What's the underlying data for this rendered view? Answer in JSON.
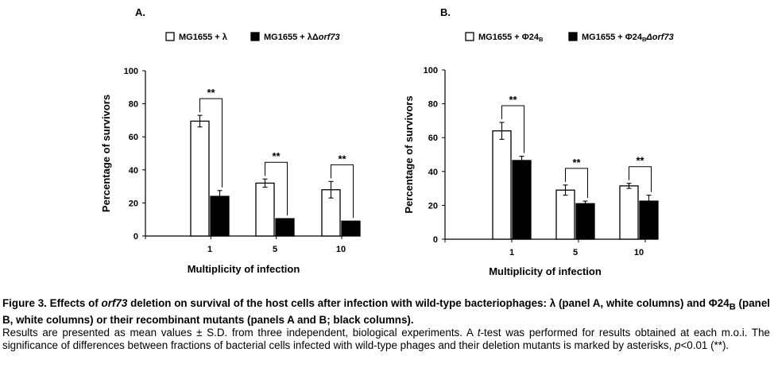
{
  "chart_data": [
    {
      "type": "bar",
      "panel_label": "A.",
      "categories": [
        "1",
        "5",
        "10"
      ],
      "series": [
        {
          "name": "MG1655 + λ",
          "legend_pre": "MG1655 + λ",
          "legend_sub": "",
          "legend_italic": "",
          "color": "#ffffff",
          "values": [
            69.5,
            32,
            28
          ],
          "errors": [
            3.5,
            2.5,
            5
          ]
        },
        {
          "name": "MG1655 + λΔorf73",
          "legend_pre": "MG1655 + λΔ",
          "legend_sub": "",
          "legend_italic": "orf73",
          "color": "#000000",
          "values": [
            24,
            10.5,
            9
          ],
          "errors": [
            3.5,
            0,
            0
          ]
        }
      ],
      "significance": [
        "**",
        "**",
        "**"
      ],
      "xlabel": "Multiplicity of infection",
      "ylabel": "Percentage of survivors",
      "ylim": [
        0,
        100
      ],
      "yticks": [
        "0",
        "20",
        "40",
        "60",
        "80",
        "100"
      ],
      "grid": false,
      "legend_position": "top"
    },
    {
      "type": "bar",
      "panel_label": "B.",
      "categories": [
        "1",
        "5",
        "10"
      ],
      "series": [
        {
          "name": "MG1655 + Φ24B",
          "legend_pre": "MG1655 + Φ24",
          "legend_sub": "B",
          "legend_italic": "",
          "color": "#ffffff",
          "values": [
            64,
            29,
            31.5
          ],
          "errors": [
            5,
            3,
            1.5
          ]
        },
        {
          "name": "MG1655 + Φ24BΔorf73",
          "legend_pre": "MG1655 + Φ24",
          "legend_sub": "B",
          "legend_italic": "Δorf73",
          "color": "#000000",
          "values": [
            46.5,
            21,
            22.5
          ],
          "errors": [
            2.5,
            1.5,
            3.5
          ]
        }
      ],
      "significance": [
        "**",
        "**",
        "**"
      ],
      "xlabel": "Multiplicity of infection",
      "ylabel": "Percentage of survivors",
      "ylim": [
        0,
        100
      ],
      "yticks": [
        "0",
        "20",
        "40",
        "60",
        "80",
        "100"
      ],
      "grid": false,
      "legend_position": "top"
    }
  ],
  "caption": {
    "title_1": "Figure 3. Effects of ",
    "title_italic": "orf73",
    "title_2": " deletion on survival of the host cells after infection with wild-type bacteriophages: λ (panel A, white columns) and Φ24",
    "title_sub": "B",
    "title_3": " (panel B, white columns) or their recombinant mutants (panels A and B; black columns).",
    "body_1": "Results are presented as mean values ± S.D. from three independent, biological experiments. A ",
    "body_italic": "t",
    "body_2": "-test was performed for results obtained at each m.o.i. The significance of differences between fractions of bacterial cells infected with wild-type phages and their deletion mutants is marked by asterisks, ",
    "body_italic_2": "p",
    "body_3": "<0.01 (**)."
  }
}
